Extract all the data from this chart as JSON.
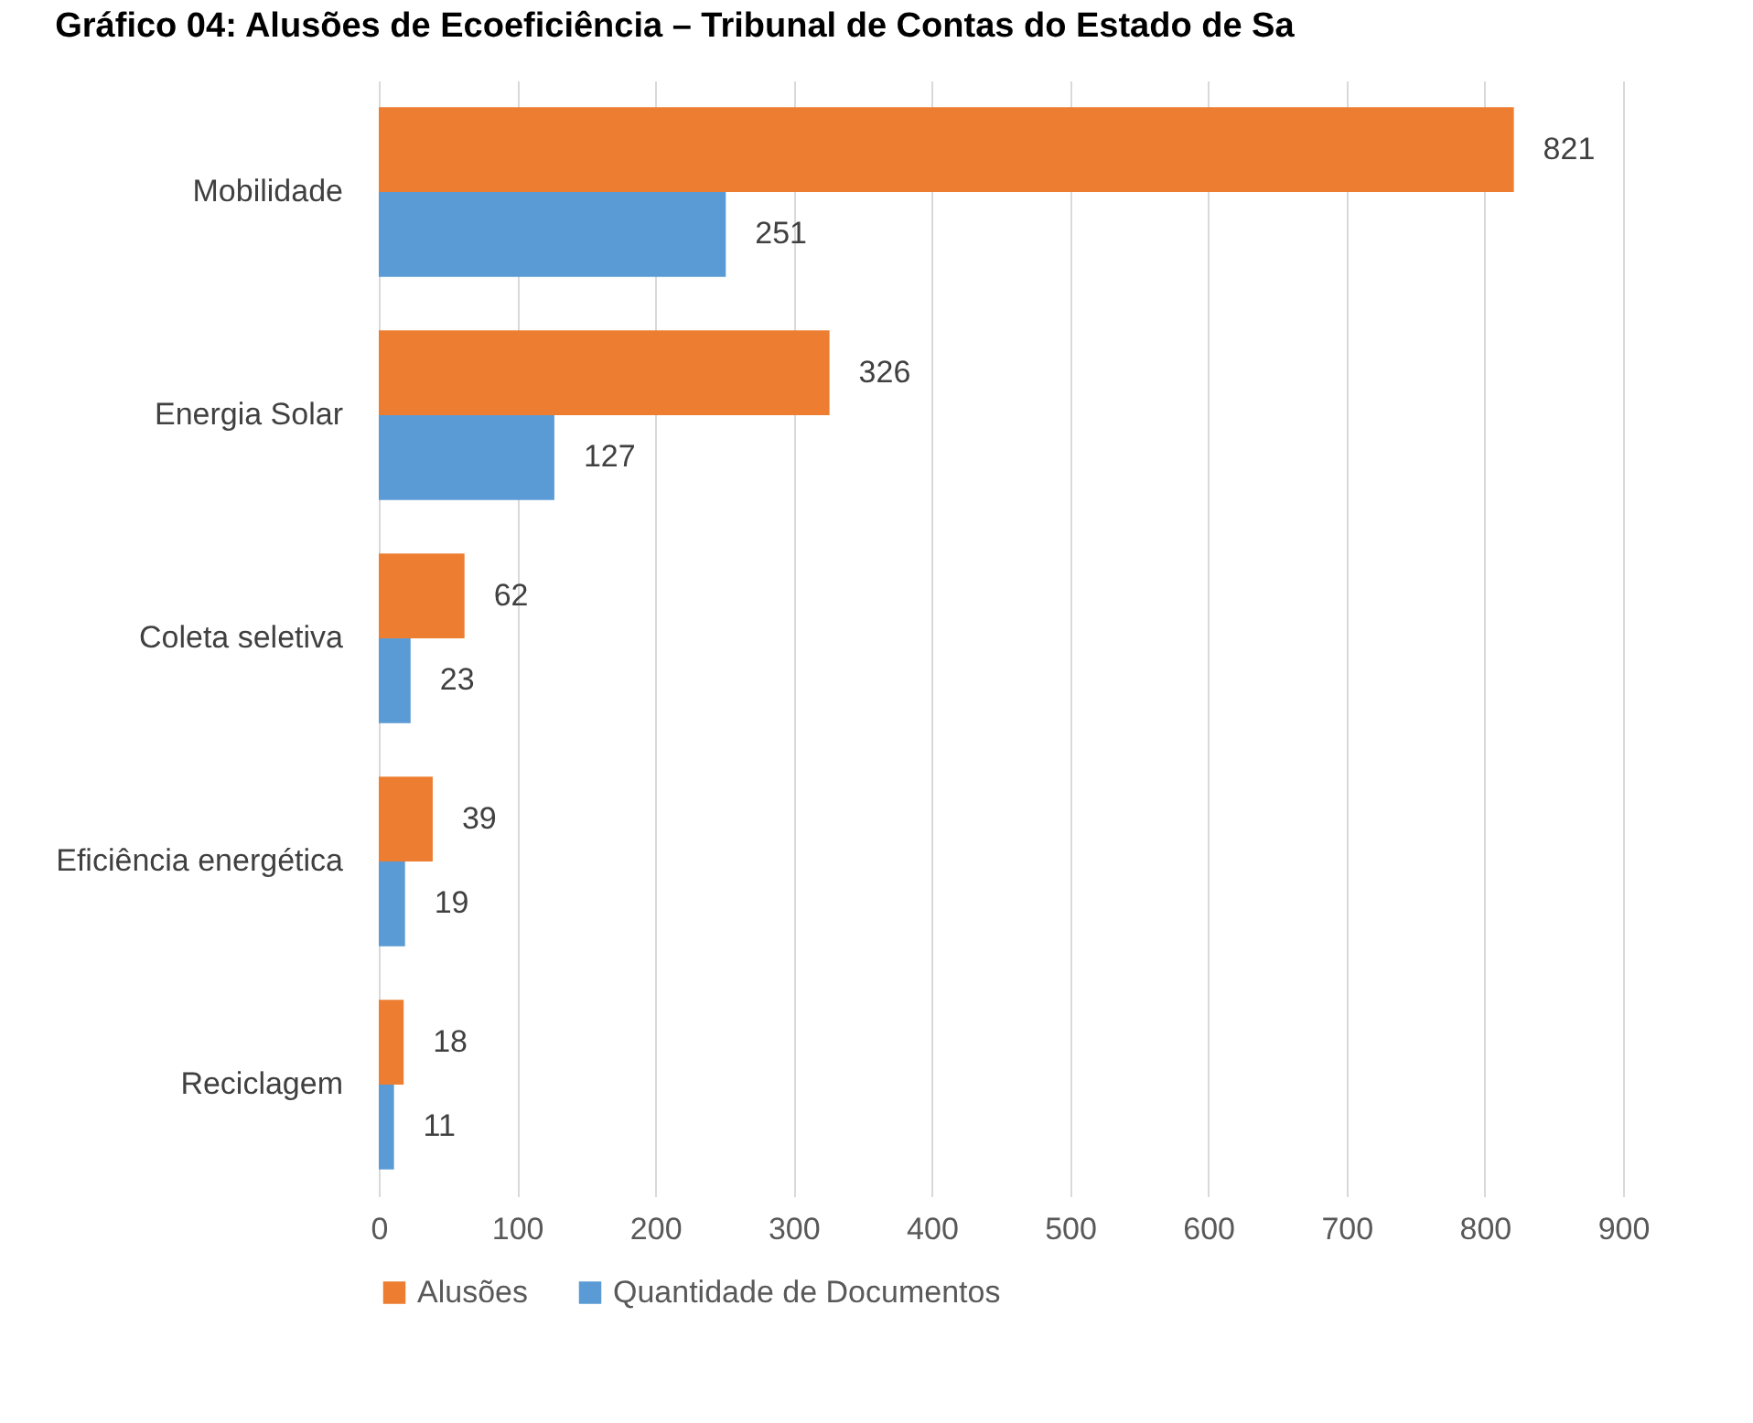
{
  "chart_data": {
    "type": "bar",
    "orientation": "horizontal",
    "title": "Gráfico 04: Alusões de Ecoeficiência – Tribunal de Contas do Estado de Sa",
    "categories": [
      "Mobilidade",
      "Energia Solar",
      "Coleta seletiva",
      "Eficiência energética",
      "Reciclagem"
    ],
    "series": [
      {
        "name": "Alusões",
        "color": "#ed7d31",
        "values": [
          821,
          326,
          62,
          39,
          18
        ]
      },
      {
        "name": "Quantidade de Documentos",
        "color": "#5b9bd5",
        "values": [
          251,
          127,
          23,
          19,
          11
        ]
      }
    ],
    "xlim": [
      0,
      900
    ],
    "xticks": [
      0,
      100,
      200,
      300,
      400,
      500,
      600,
      700,
      800,
      900
    ],
    "grid": "x",
    "legend": "bottom",
    "data_labels": true
  }
}
